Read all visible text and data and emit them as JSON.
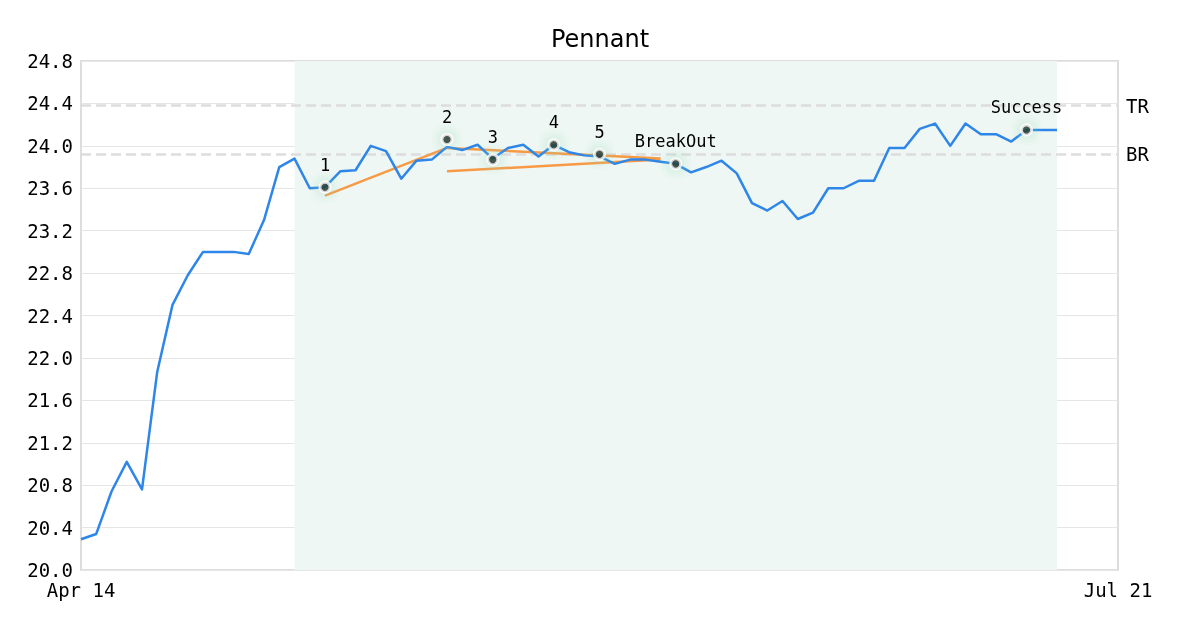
{
  "chart_data": {
    "type": "line",
    "title": "Pennant",
    "categories": [
      "Apr 14",
      null,
      null,
      null,
      null,
      null,
      null,
      null,
      null,
      null,
      null,
      null,
      null,
      null,
      null,
      null,
      null,
      null,
      null,
      null,
      null,
      null,
      null,
      null,
      null,
      null,
      null,
      null,
      null,
      null,
      null,
      null,
      null,
      null,
      null,
      null,
      null,
      null,
      null,
      null,
      null,
      null,
      null,
      null,
      null,
      null,
      null,
      null,
      null,
      null,
      null,
      null,
      null,
      null,
      null,
      null,
      null,
      null,
      null,
      null,
      null,
      null,
      null,
      null,
      null,
      null,
      null,
      null,
      "Jul 21"
    ],
    "series": [
      {
        "color": "#2e86e8",
        "values": [
          20.29,
          20.34,
          20.74,
          21.02,
          20.76,
          21.87,
          22.5,
          22.78,
          23.0,
          23.0,
          23.0,
          22.98,
          23.3,
          23.8,
          23.88,
          23.6,
          23.61,
          23.76,
          23.77,
          24.0,
          23.95,
          23.69,
          23.86,
          23.87,
          23.99,
          23.96,
          24.01,
          23.88,
          23.98,
          24.01,
          23.9,
          24.01,
          23.94,
          23.91,
          23.9,
          23.83,
          23.87,
          23.87,
          23.85,
          23.83,
          23.75,
          23.8,
          23.86,
          23.74,
          23.46,
          23.39,
          23.48,
          23.31,
          23.37,
          23.6,
          23.6,
          23.67,
          23.67,
          23.98,
          23.98,
          24.16,
          24.21,
          24.0,
          24.21,
          24.11,
          24.11,
          24.04,
          24.15,
          24.15,
          24.15,
          null,
          null,
          null,
          null
        ]
      },
      {
        "type": "line",
        "color": "#f79a45",
        "values": [
          null,
          null,
          null,
          null,
          null,
          null,
          null,
          null,
          null,
          null,
          null,
          null,
          null,
          null,
          null,
          null,
          23.53,
          null,
          null,
          null,
          null,
          null,
          null,
          null,
          23.98,
          null,
          null,
          null,
          null,
          null,
          null,
          null,
          null,
          null,
          null,
          null,
          null,
          null,
          23.88,
          null,
          null,
          null,
          null,
          null,
          null,
          null,
          null,
          null,
          null,
          null,
          null,
          null,
          null,
          null,
          null,
          null,
          null,
          null,
          null,
          null,
          null,
          null,
          null,
          null,
          null,
          null,
          null,
          null,
          null
        ]
      },
      {
        "type": "line",
        "color": "#f79a45",
        "values": [
          null,
          null,
          null,
          null,
          null,
          null,
          null,
          null,
          null,
          null,
          null,
          null,
          null,
          null,
          null,
          null,
          null,
          null,
          null,
          null,
          null,
          null,
          null,
          null,
          23.76,
          null,
          null,
          null,
          null,
          null,
          null,
          null,
          null,
          null,
          null,
          null,
          null,
          null,
          23.87,
          null,
          null,
          null,
          null,
          null,
          null,
          null,
          null,
          null,
          null,
          null,
          null,
          null,
          null,
          null,
          null,
          null,
          null,
          null,
          null,
          null,
          null,
          null,
          null,
          null,
          null,
          null,
          null,
          null,
          null
        ]
      },
      {
        "type": "scatter",
        "color": "#000000",
        "values": [
          null,
          null,
          null,
          null,
          null,
          null,
          null,
          null,
          null,
          null,
          null,
          null,
          null,
          null,
          null,
          null,
          23.61,
          null,
          null,
          null,
          null,
          null,
          null,
          null,
          24.06,
          null,
          null,
          23.87,
          null,
          null,
          null,
          24.01,
          null,
          null,
          23.92,
          null,
          null,
          null,
          null,
          23.83,
          null,
          null,
          null,
          null,
          null,
          null,
          null,
          null,
          null,
          null,
          null,
          null,
          null,
          null,
          null,
          null,
          null,
          null,
          null,
          null,
          null,
          null,
          24.15,
          null,
          null,
          null,
          null,
          null,
          null
        ]
      }
    ],
    "annotations": [
      "1",
      "2",
      "3",
      "4",
      "5",
      "BreakOut",
      "Success"
    ],
    "ref_lines": [
      {
        "axis": "y",
        "value": 24.38,
        "label": "TR",
        "color": "#dddddd",
        "line_style": "dashed"
      },
      {
        "axis": "y",
        "value": 23.92,
        "label": "BR",
        "color": "#dddddd",
        "line_style": "dashed"
      }
    ],
    "ylim": [
      20.0,
      24.8
    ],
    "yticks": [
      {
        "value": 20.0,
        "label": "20.0"
      },
      {
        "value": 20.4,
        "label": "20.4"
      },
      {
        "value": 20.8,
        "label": "20.8"
      },
      {
        "value": 21.2,
        "label": "21.2"
      },
      {
        "value": 21.6,
        "label": "21.6"
      },
      {
        "value": 22.0,
        "label": "22.0"
      },
      {
        "value": 22.4,
        "label": "22.4"
      },
      {
        "value": 22.8,
        "label": "22.8"
      },
      {
        "value": 23.2,
        "label": "23.2"
      },
      {
        "value": 23.6,
        "label": "23.6"
      },
      {
        "value": 24.0,
        "label": "24.0"
      },
      {
        "value": 24.4,
        "label": "24.4"
      },
      {
        "value": 24.8,
        "label": "24.8"
      }
    ],
    "grid": "y",
    "line_style": "solid"
  }
}
